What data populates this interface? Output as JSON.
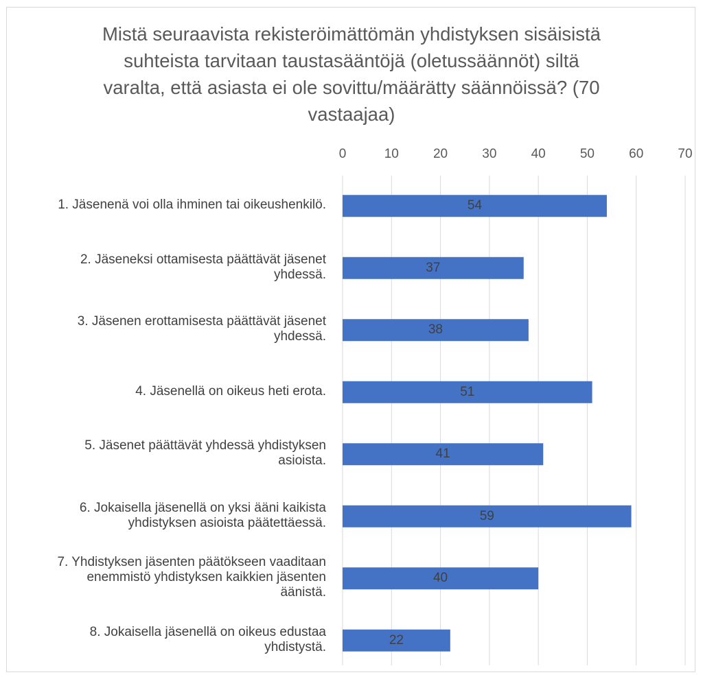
{
  "chart_data": {
    "type": "bar",
    "orientation": "horizontal",
    "title": "Mistä seuraavista rekisteröimättömän yhdistyksen sisäisistä suhteista tarvitaan taustasääntöjä (oletussäännöt) siltä varalta, että asiasta ei ole sovittu/määrätty säännöissä? (70 vastaajaa)",
    "title_lines": [
      "Mistä seuraavista rekisteröimättömän yhdistyksen sisäisistä",
      "suhteista tarvitaan taustasääntöjä (oletussäännöt) siltä",
      "varalta, että asiasta ei ole sovittu/määrätty säännöissä? (70",
      "vastaajaa)"
    ],
    "categories": [
      [
        "1. Jäsenenä voi olla ihminen tai oikeushenkilö."
      ],
      [
        "2. Jäseneksi ottamisesta päättävät jäsenet",
        "yhdessä."
      ],
      [
        "3. Jäsenen erottamisesta päättävät jäsenet",
        "yhdessä."
      ],
      [
        "4. Jäsenellä on oikeus heti erota."
      ],
      [
        "5. Jäsenet päättävät yhdessä yhdistyksen",
        "asioista."
      ],
      [
        "6. Jokaisella jäsenellä on yksi ääni kaikista",
        "yhdistyksen asioista päätettäessä."
      ],
      [
        "7. Yhdistyksen jäsenten päätökseen vaaditaan",
        "enemmistö yhdistyksen kaikkien jäsenten",
        "äänistä."
      ],
      [
        "8. Jokaisella jäsenellä on oikeus edustaa",
        "yhdistystä."
      ]
    ],
    "values": [
      54,
      37,
      38,
      51,
      41,
      59,
      40,
      22
    ],
    "xlim": [
      0,
      70
    ],
    "xticks": [
      0,
      10,
      20,
      30,
      40,
      50,
      60,
      70
    ],
    "axis_position": "top",
    "grid": true,
    "bar_color": "#4472c4",
    "gridline_color": "#d9d9d9",
    "data_labels": true
  }
}
